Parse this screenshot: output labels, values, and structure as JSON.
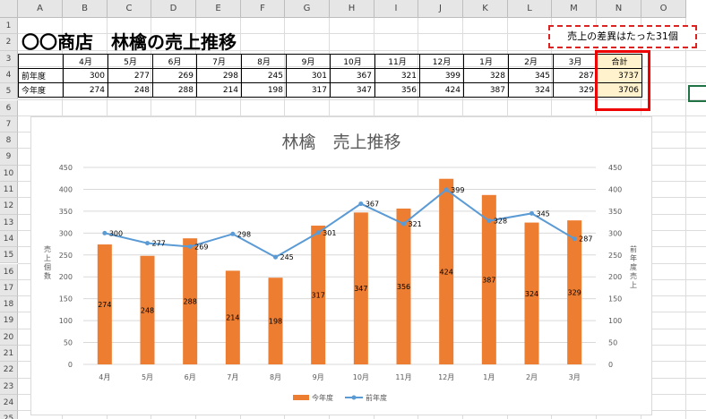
{
  "columns": [
    "A",
    "B",
    "C",
    "D",
    "E",
    "F",
    "G",
    "H",
    "I",
    "J",
    "K",
    "L",
    "M",
    "N",
    "O"
  ],
  "rows": [
    "1",
    "2",
    "3",
    "4",
    "5",
    "6",
    "7",
    "8",
    "9",
    "10",
    "11",
    "12",
    "13",
    "14",
    "15",
    "16",
    "17",
    "18",
    "19",
    "20",
    "21",
    "22",
    "23",
    "24",
    "25"
  ],
  "sheet": {
    "title": "〇〇商店　林檎の売上推移",
    "note": "売上の差異はたった31個",
    "months": [
      "4月",
      "5月",
      "6月",
      "7月",
      "8月",
      "9月",
      "10月",
      "11月",
      "12月",
      "1月",
      "2月",
      "3月"
    ],
    "total_header": "合計",
    "rows": [
      {
        "label": "前年度",
        "values": [
          "300",
          "277",
          "269",
          "298",
          "245",
          "301",
          "367",
          "321",
          "399",
          "328",
          "345",
          "287"
        ],
        "total": "3737"
      },
      {
        "label": "今年度",
        "values": [
          "274",
          "248",
          "288",
          "214",
          "198",
          "317",
          "347",
          "356",
          "424",
          "387",
          "324",
          "329"
        ],
        "total": "3706"
      }
    ]
  },
  "colors": {
    "bar": "#ed7d31",
    "line": "#5b9bd5",
    "highlight": "#ff0000",
    "total_fill": "#fff2cc"
  },
  "chart_data": {
    "type": "bar",
    "title": "林檎　売上推移",
    "categories": [
      "4月",
      "5月",
      "6月",
      "7月",
      "8月",
      "9月",
      "10月",
      "11月",
      "12月",
      "1月",
      "2月",
      "3月"
    ],
    "series": [
      {
        "name": "今年度",
        "type": "bar",
        "axis": "left",
        "values": [
          274,
          248,
          288,
          214,
          198,
          317,
          347,
          356,
          424,
          387,
          324,
          329
        ]
      },
      {
        "name": "前年度",
        "type": "line",
        "axis": "right",
        "values": [
          300,
          277,
          269,
          298,
          245,
          301,
          367,
          321,
          399,
          328,
          345,
          287
        ]
      }
    ],
    "ylabel": "売上個数",
    "y2label": "前年度売上",
    "ylim": [
      0,
      450
    ],
    "y2lim": [
      0,
      450
    ],
    "yticks": [
      0,
      50,
      100,
      150,
      200,
      250,
      300,
      350,
      400,
      450
    ],
    "grid": true,
    "legend": "bottom"
  }
}
